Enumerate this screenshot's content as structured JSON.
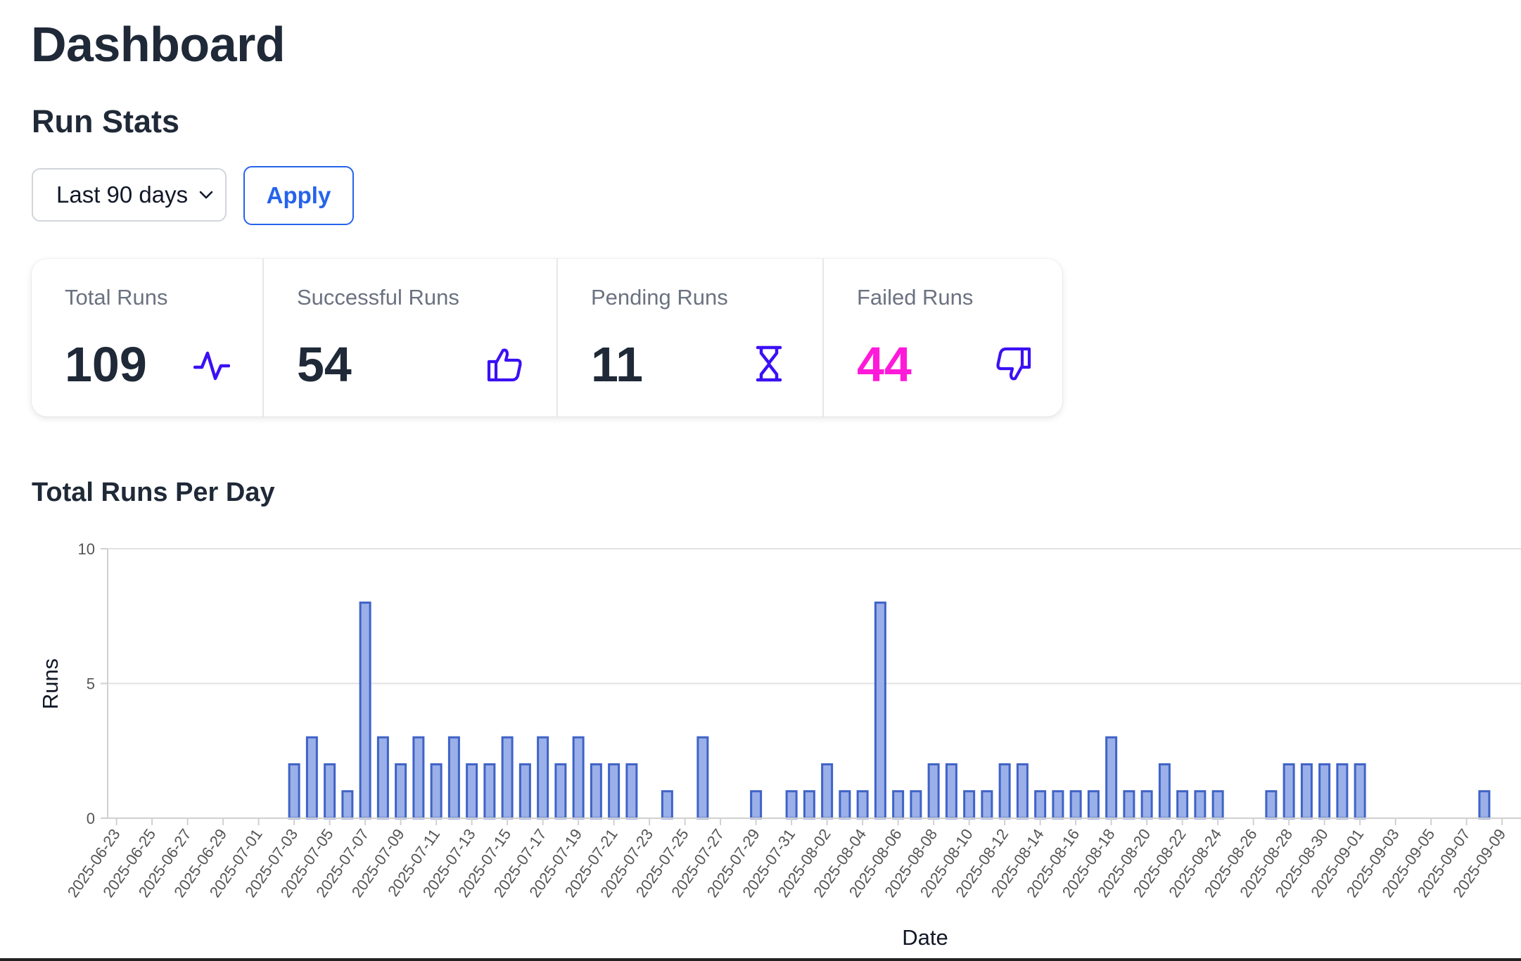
{
  "page": {
    "title": "Dashboard"
  },
  "run_stats": {
    "title": "Run Stats",
    "range_select": {
      "value": "Last 90 days"
    },
    "apply_label": "Apply",
    "cards": [
      {
        "label": "Total Runs",
        "value": "109",
        "icon": "activity-icon",
        "value_color": "#1f2937"
      },
      {
        "label": "Successful Runs",
        "value": "54",
        "icon": "thumbs-up-icon",
        "value_color": "#1f2937"
      },
      {
        "label": "Pending Runs",
        "value": "11",
        "icon": "hourglass-icon",
        "value_color": "#1f2937"
      },
      {
        "label": "Failed Runs",
        "value": "44",
        "icon": "thumbs-down-icon",
        "value_color": "#ff1ad9"
      }
    ],
    "icon_color": "#3b10f5"
  },
  "chart_section": {
    "title": "Total Runs Per Day"
  },
  "chart_data": {
    "type": "bar",
    "title": "Total Runs Per Day",
    "xlabel": "Date",
    "ylabel": "Runs",
    "ylim": [
      0,
      10
    ],
    "yticks": [
      0,
      5,
      10
    ],
    "grid": true,
    "bar_fill": "#9bb0e8",
    "bar_stroke": "#3f63c7",
    "categories": [
      "2025-06-23",
      "2025-06-24",
      "2025-06-25",
      "2025-06-26",
      "2025-06-27",
      "2025-06-28",
      "2025-06-29",
      "2025-06-30",
      "2025-07-01",
      "2025-07-02",
      "2025-07-03",
      "2025-07-04",
      "2025-07-05",
      "2025-07-06",
      "2025-07-07",
      "2025-07-08",
      "2025-07-09",
      "2025-07-10",
      "2025-07-11",
      "2025-07-12",
      "2025-07-13",
      "2025-07-14",
      "2025-07-15",
      "2025-07-16",
      "2025-07-17",
      "2025-07-18",
      "2025-07-19",
      "2025-07-20",
      "2025-07-21",
      "2025-07-22",
      "2025-07-23",
      "2025-07-24",
      "2025-07-25",
      "2025-07-26",
      "2025-07-27",
      "2025-07-28",
      "2025-07-29",
      "2025-07-30",
      "2025-07-31",
      "2025-08-01",
      "2025-08-02",
      "2025-08-03",
      "2025-08-04",
      "2025-08-05",
      "2025-08-06",
      "2025-08-07",
      "2025-08-08",
      "2025-08-09",
      "2025-08-10",
      "2025-08-11",
      "2025-08-12",
      "2025-08-13",
      "2025-08-14",
      "2025-08-15",
      "2025-08-16",
      "2025-08-17",
      "2025-08-18",
      "2025-08-19",
      "2025-08-20",
      "2025-08-21",
      "2025-08-22",
      "2025-08-23",
      "2025-08-24",
      "2025-08-25",
      "2025-08-26",
      "2025-08-27",
      "2025-08-28",
      "2025-08-29",
      "2025-08-30",
      "2025-08-31",
      "2025-09-01",
      "2025-09-02",
      "2025-09-03",
      "2025-09-04",
      "2025-09-05",
      "2025-09-06",
      "2025-09-07",
      "2025-09-08",
      "2025-09-09",
      "2025-09-10"
    ],
    "values": [
      0,
      0,
      0,
      0,
      0,
      0,
      0,
      0,
      0,
      0,
      2,
      3,
      2,
      1,
      8,
      3,
      2,
      3,
      2,
      3,
      2,
      2,
      3,
      2,
      3,
      2,
      3,
      2,
      2,
      2,
      0,
      1,
      0,
      3,
      0,
      0,
      1,
      0,
      1,
      1,
      2,
      1,
      1,
      8,
      1,
      1,
      2,
      2,
      1,
      1,
      2,
      2,
      1,
      1,
      1,
      1,
      3,
      1,
      1,
      2,
      1,
      1,
      1,
      0,
      0,
      1,
      2,
      2,
      2,
      2,
      2,
      0,
      0,
      0,
      0,
      0,
      0,
      1,
      0,
      0
    ],
    "tick_labels": [
      "2025-06-23",
      "2025-06-25",
      "2025-06-27",
      "2025-06-29",
      "2025-07-01",
      "2025-07-03",
      "2025-07-05",
      "2025-07-07",
      "2025-07-09",
      "2025-07-11",
      "2025-07-13",
      "2025-07-15",
      "2025-07-17",
      "2025-07-19",
      "2025-07-21",
      "2025-07-23",
      "2025-07-25",
      "2025-07-27",
      "2025-07-29",
      "2025-07-31",
      "2025-08-02",
      "2025-08-04",
      "2025-08-06",
      "2025-08-08",
      "2025-08-10",
      "2025-08-12",
      "2025-08-14",
      "2025-08-16",
      "2025-08-18",
      "2025-08-20",
      "2025-08-22",
      "2025-08-24",
      "2025-08-26",
      "2025-08-28",
      "2025-08-30",
      "2025-09-01",
      "2025-09-03",
      "2025-09-05",
      "2025-09-07",
      "2025-09-09"
    ]
  }
}
